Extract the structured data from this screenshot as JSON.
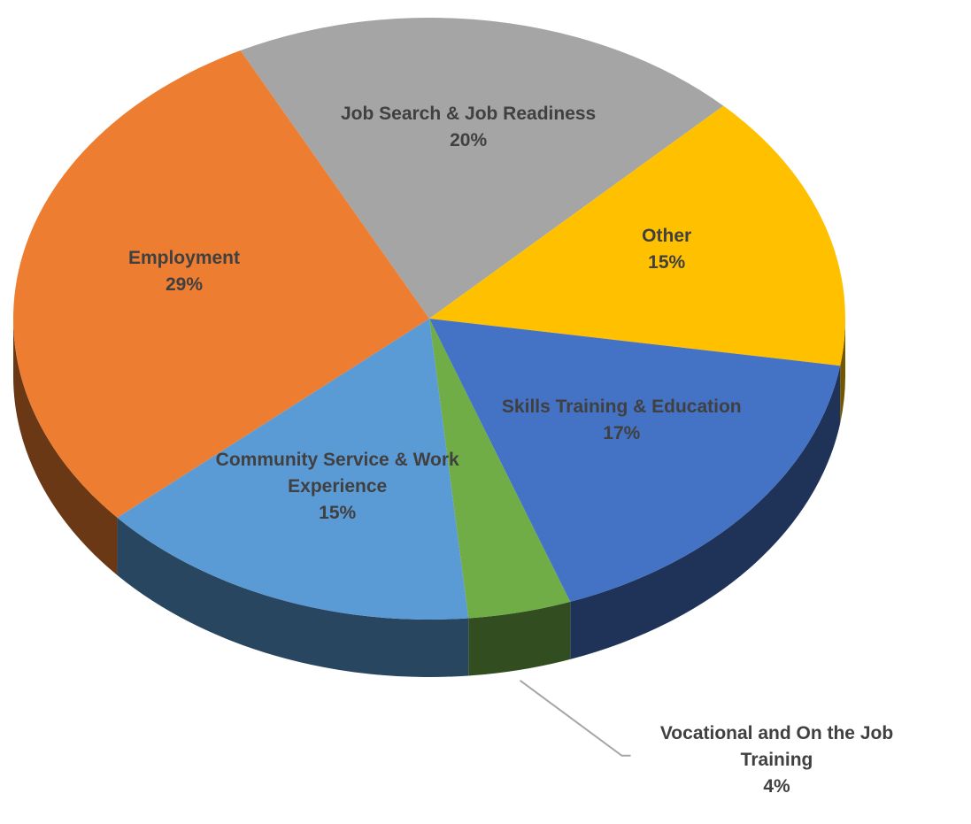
{
  "chart_data": {
    "type": "pie",
    "categories": [
      "Job Search & Job Readiness",
      "Other",
      "Skills Training & Education",
      "Vocational and On the Job Training",
      "Community Service & Work Experience",
      "Employment"
    ],
    "values": [
      20,
      15,
      17,
      4,
      15,
      29
    ],
    "value_labels": [
      "20%",
      "15%",
      "17%",
      "4%",
      "15%",
      "29%"
    ],
    "colors": [
      "#a5a5a5",
      "#ffc000",
      "#4472c4",
      "#70ad47",
      "#5b9bd5",
      "#ed7d31"
    ]
  }
}
